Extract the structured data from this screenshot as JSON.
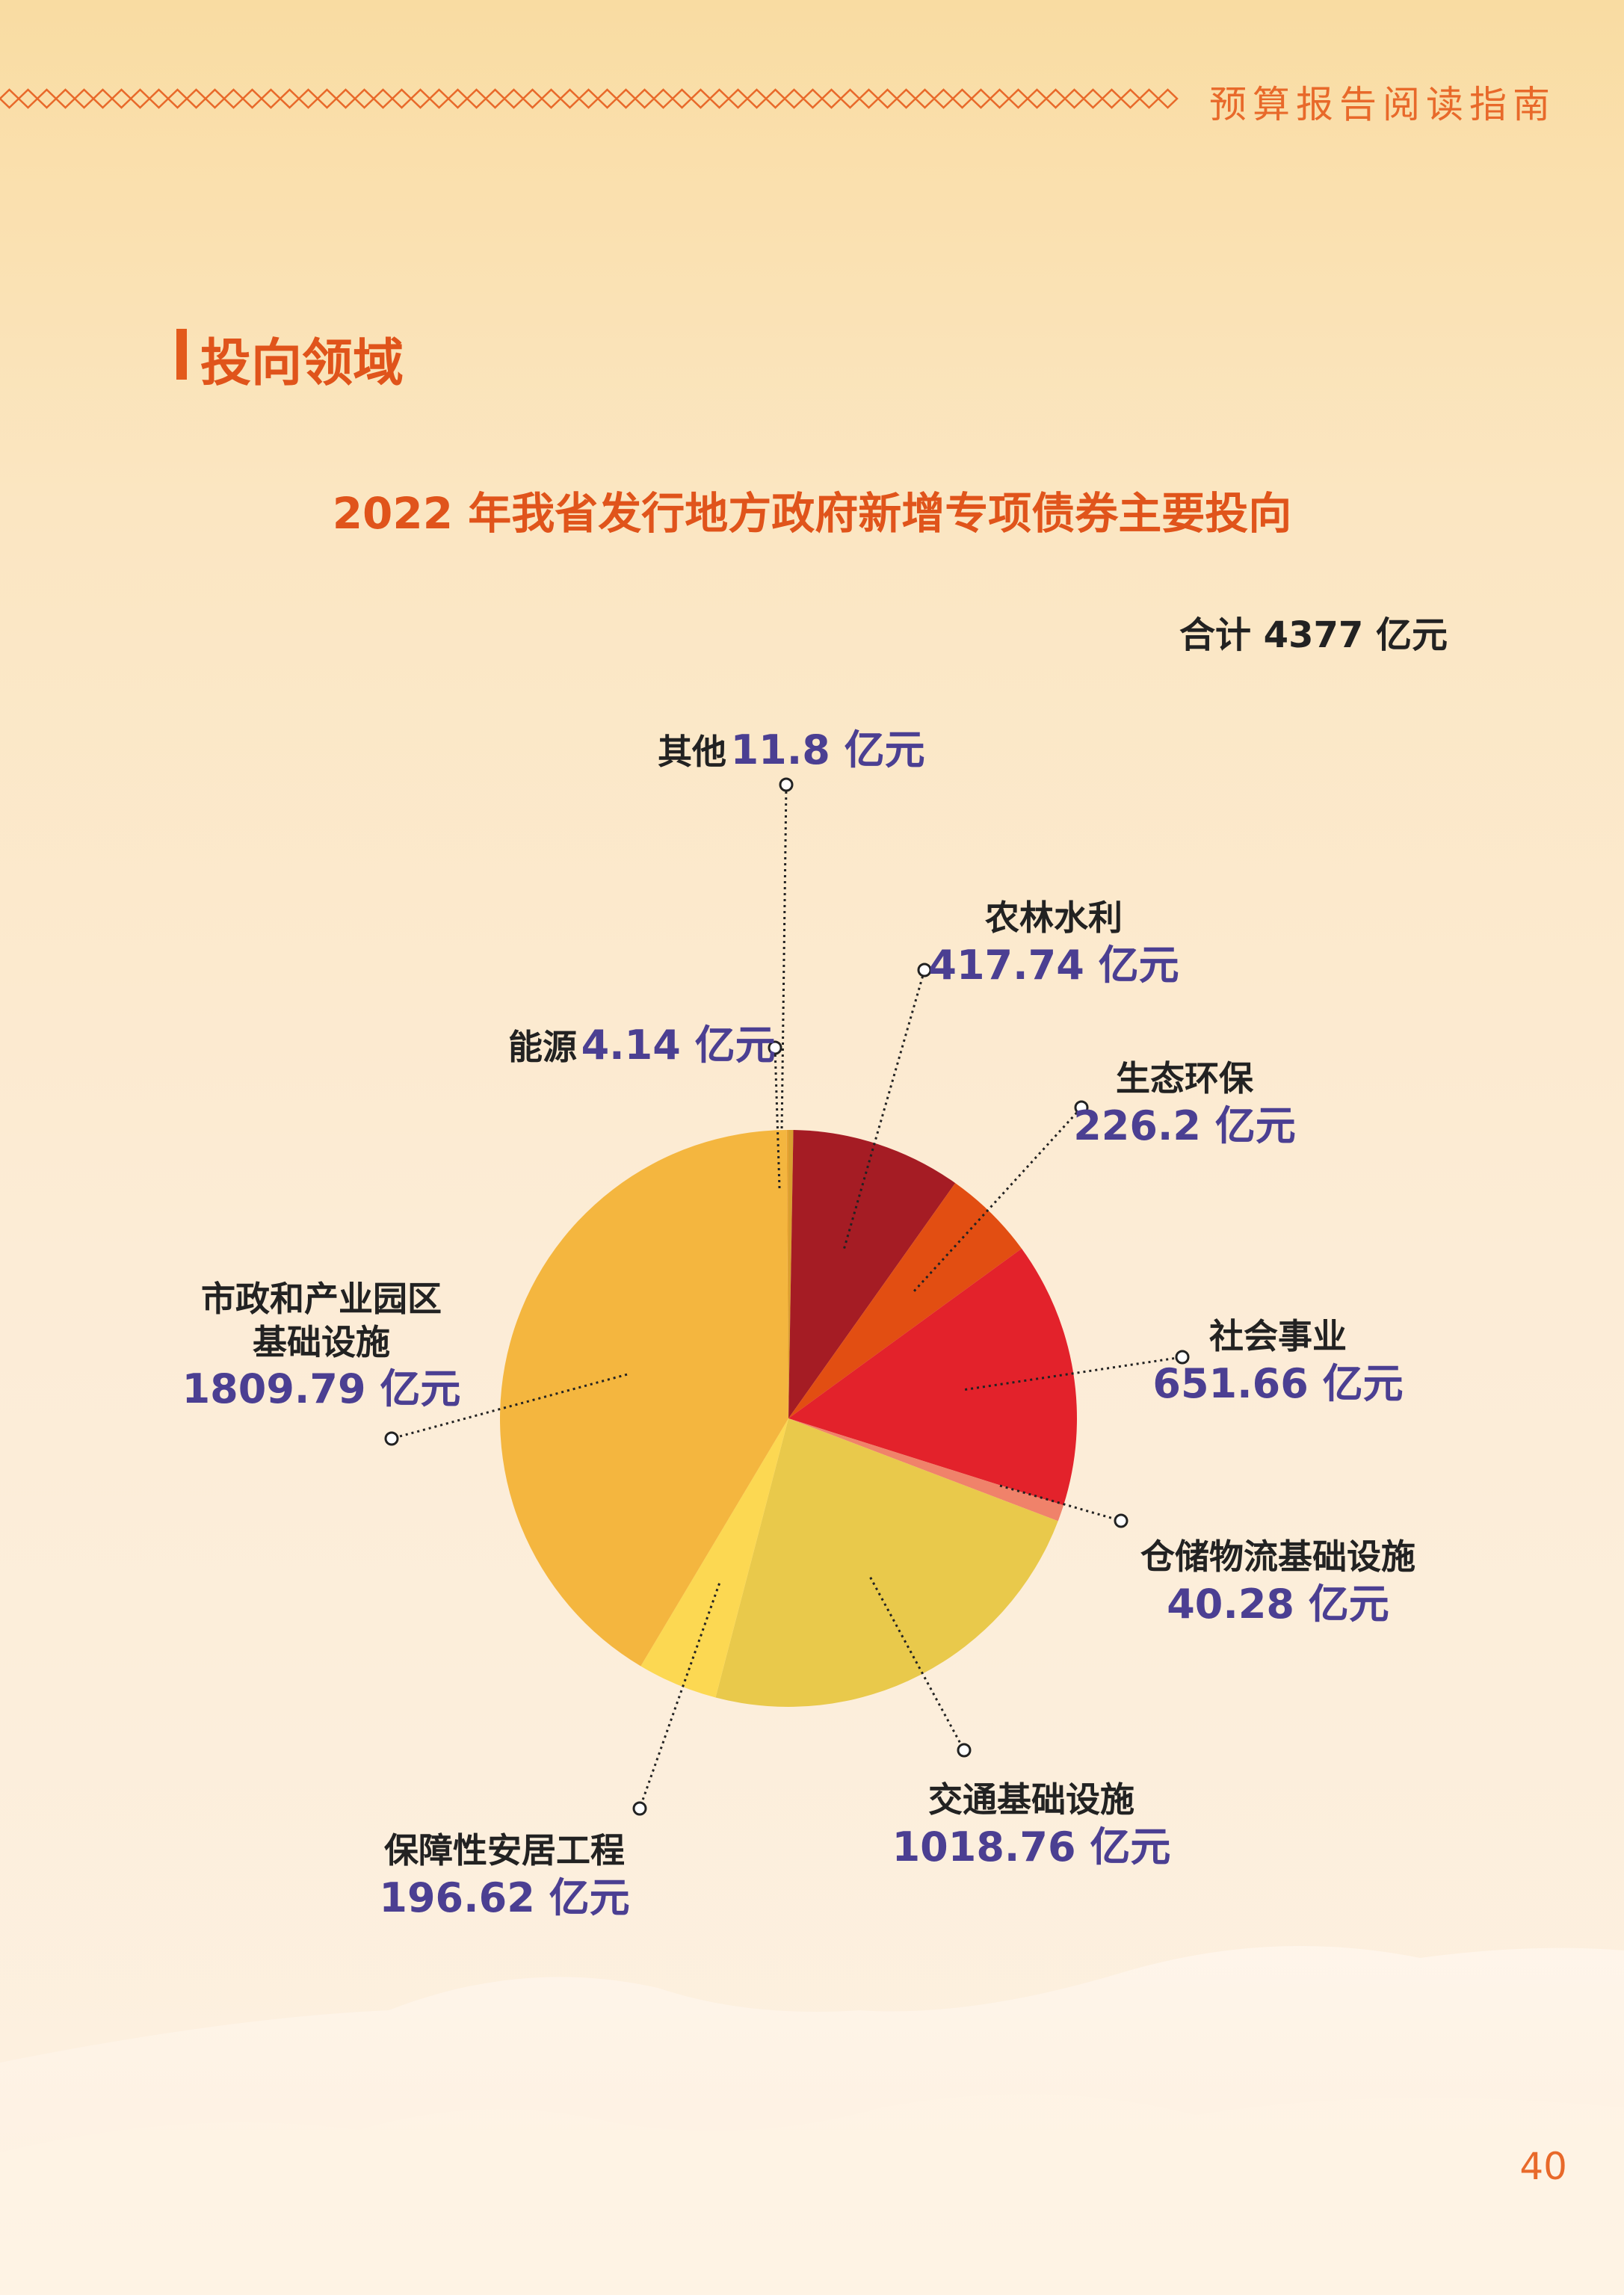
{
  "header": {
    "text": "预算报告阅读指南"
  },
  "section": {
    "title": "投向领域"
  },
  "page_number": "40",
  "colors": {
    "accent": "#e0541b",
    "value_text": "#4b3f92"
  },
  "chart_data": {
    "type": "pie",
    "title": "2022 年我省发行地方政府新增专项债券主要投向",
    "total_label": "合计 4377 亿元",
    "unit": "亿元",
    "slices": [
      {
        "name": "其他",
        "value": 11.8,
        "value_label": "11.8",
        "color": "#d9a030"
      },
      {
        "name": "农林水利",
        "value": 417.74,
        "value_label": "417.74",
        "color": "#a51c24"
      },
      {
        "name": "生态环保",
        "value": 226.2,
        "value_label": "226.2",
        "color": "#e24e12"
      },
      {
        "name": "社会事业",
        "value": 651.66,
        "value_label": "651.66",
        "color": "#e3222b"
      },
      {
        "name": "仓储物流基础设施",
        "value": 40.28,
        "value_label": "40.28",
        "color": "#f0826a"
      },
      {
        "name": "交通基础设施",
        "value": 1018.76,
        "value_label": "1018.76",
        "color": "#e9c94b"
      },
      {
        "name": "保障性安居工程",
        "value": 196.62,
        "value_label": "196.62",
        "color": "#fcd852"
      },
      {
        "name": "市政和产业园区基础设施",
        "value": 1809.79,
        "value_label": "1809.79",
        "color": "#f4b63f"
      },
      {
        "name": "能源",
        "value": 4.14,
        "value_label": "4.14",
        "color": "#e8a332"
      }
    ]
  },
  "labels": {
    "qita": {
      "name": "其他",
      "value": "11.8",
      "unit": " 亿元"
    },
    "nonglin": {
      "name": "农林水利",
      "value": "417.74",
      "unit": " 亿元"
    },
    "shengtai": {
      "name": "生态环保",
      "value": "226.2",
      "unit": " 亿元"
    },
    "shehui": {
      "name": "社会事业",
      "value": "651.66",
      "unit": " 亿元"
    },
    "cangchu": {
      "name": "仓储物流基础设施",
      "value": "40.28",
      "unit": " 亿元"
    },
    "jiaotong": {
      "name": "交通基础设施",
      "value": "1018.76",
      "unit": " 亿元"
    },
    "baozhang": {
      "name": "保障性安居工程",
      "value": "196.62",
      "unit": " 亿元"
    },
    "shizheng": {
      "name_line1": "市政和产业园区",
      "name_line2": "基础设施",
      "value": "1809.79",
      "unit": " 亿元"
    },
    "nengyuan": {
      "name": "能源",
      "value": "4.14",
      "unit": " 亿元"
    }
  }
}
